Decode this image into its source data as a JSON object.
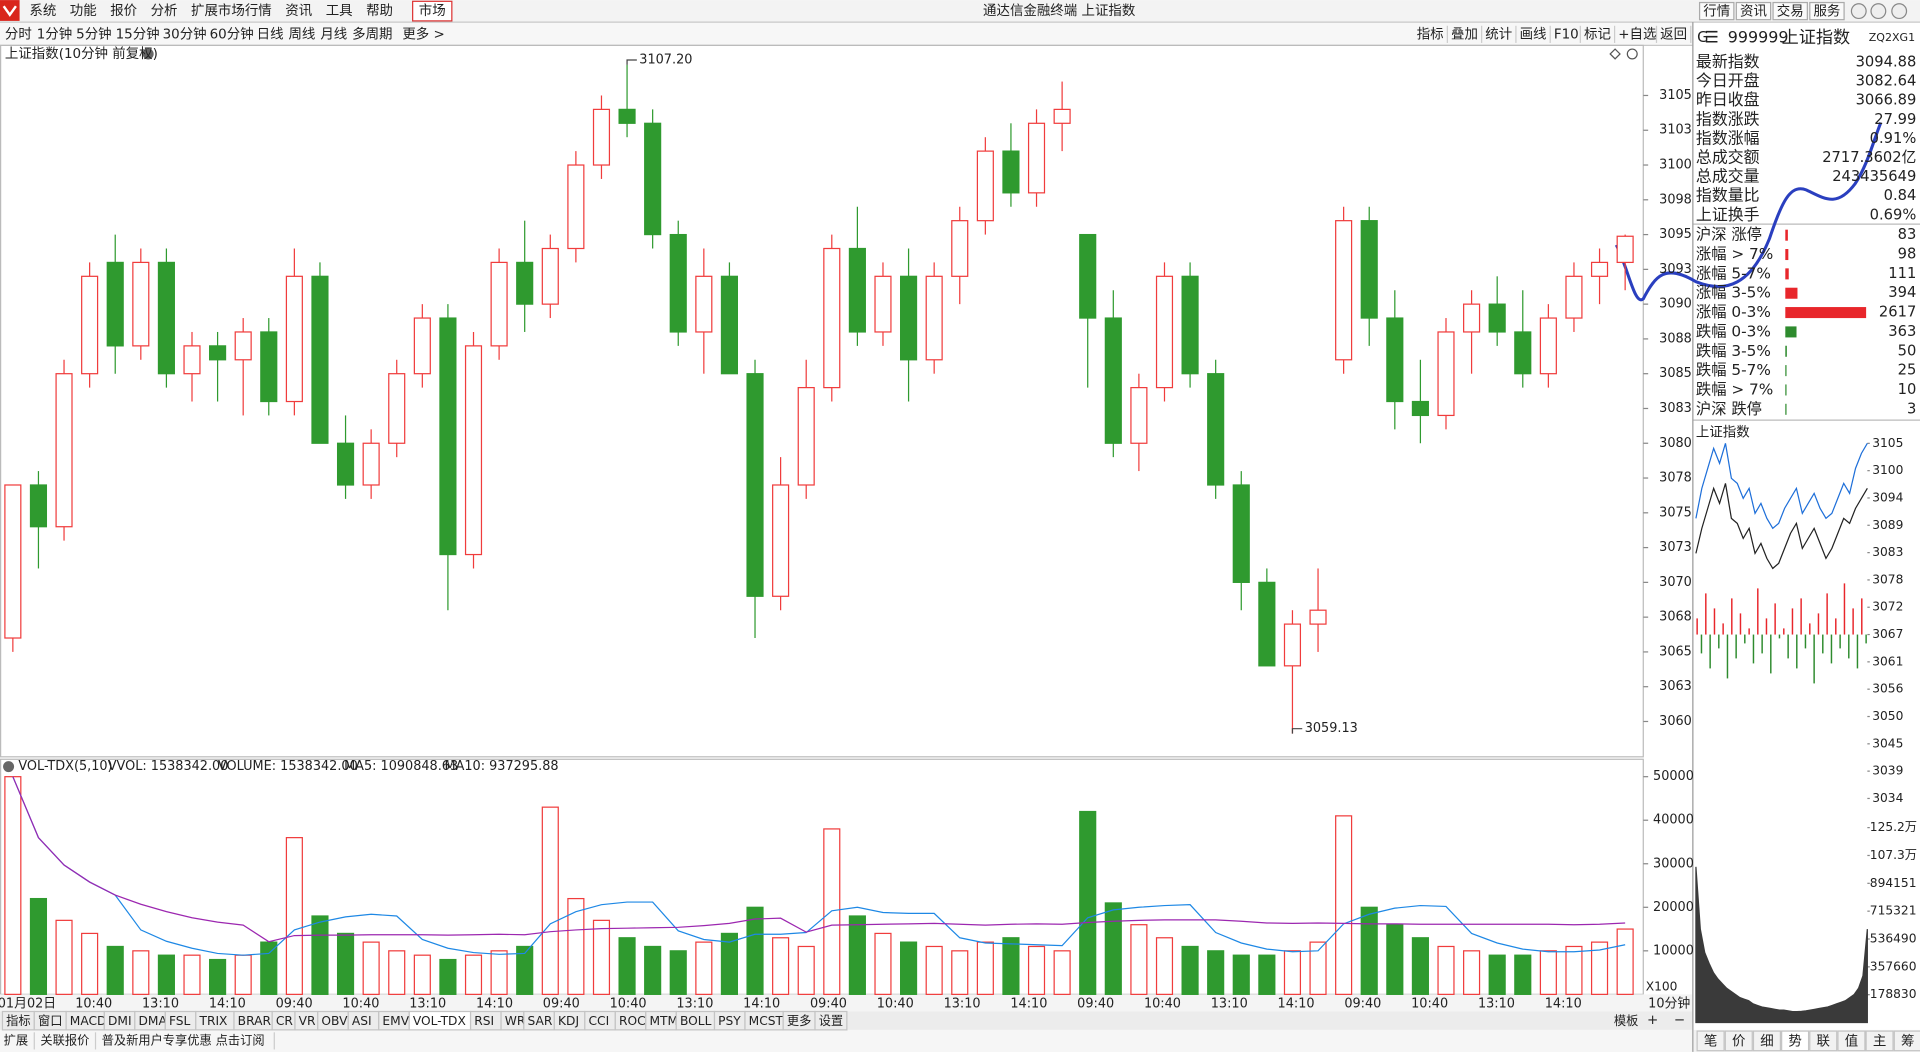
{
  "window": {
    "menu": [
      "系统",
      "功能",
      "报价",
      "分析",
      "扩展市场行情",
      "资讯",
      "工具",
      "帮助"
    ],
    "market": "市场",
    "title": "通达信金融终端 上证指数",
    "buttons": [
      "行情",
      "资讯",
      "交易",
      "服务"
    ]
  },
  "toolbar": {
    "periods": [
      "分时",
      "1分钟",
      "5分钟",
      "15分钟",
      "30分钟",
      "60分钟",
      "日线",
      "周线",
      "月线",
      "多周期"
    ],
    "more": "更多 >",
    "tools": [
      "指标",
      "叠加",
      "统计",
      "画线",
      "F10",
      "标记",
      "+自选",
      "返回"
    ]
  },
  "chart_data": [
    {
      "type": "candlestick",
      "title": "上证指数(10分钟 前复权)",
      "up_color": "#f03c3c",
      "down_color": "#2f9a2f",
      "ohlc": [
        [
          3066,
          3077,
          3065,
          3077
        ],
        [
          3077,
          3078,
          3071,
          3074
        ],
        [
          3074,
          3086,
          3073,
          3085
        ],
        [
          3085,
          3093,
          3084,
          3092
        ],
        [
          3093,
          3095,
          3085,
          3087
        ],
        [
          3087,
          3094,
          3086,
          3093
        ],
        [
          3093,
          3094,
          3084,
          3085
        ],
        [
          3085,
          3088,
          3083,
          3087
        ],
        [
          3087,
          3088,
          3083,
          3086
        ],
        [
          3086,
          3089,
          3082,
          3088
        ],
        [
          3088,
          3089,
          3082,
          3083
        ],
        [
          3083,
          3094,
          3082,
          3092
        ],
        [
          3092,
          3093,
          3080,
          3080
        ],
        [
          3080,
          3082,
          3076,
          3077
        ],
        [
          3077,
          3081,
          3076,
          3080
        ],
        [
          3080,
          3086,
          3079,
          3085
        ],
        [
          3085,
          3090,
          3084,
          3089
        ],
        [
          3089,
          3090,
          3068,
          3072
        ],
        [
          3072,
          3088,
          3071,
          3087
        ],
        [
          3087,
          3094,
          3086,
          3093
        ],
        [
          3093,
          3096,
          3088,
          3090
        ],
        [
          3090,
          3095,
          3089,
          3094
        ],
        [
          3094,
          3101,
          3093,
          3100
        ],
        [
          3100,
          3105,
          3099,
          3104
        ],
        [
          3104,
          3107.2,
          3102,
          3103
        ],
        [
          3103,
          3104,
          3094,
          3095
        ],
        [
          3095,
          3096,
          3087,
          3088
        ],
        [
          3088,
          3094,
          3085,
          3092
        ],
        [
          3092,
          3093,
          3085,
          3085
        ],
        [
          3085,
          3086,
          3066,
          3069
        ],
        [
          3069,
          3079,
          3068,
          3077
        ],
        [
          3077,
          3086,
          3076,
          3084
        ],
        [
          3084,
          3095,
          3083,
          3094
        ],
        [
          3094,
          3097,
          3087,
          3088
        ],
        [
          3088,
          3093,
          3087,
          3092
        ],
        [
          3092,
          3094,
          3083,
          3086
        ],
        [
          3086,
          3093,
          3085,
          3092
        ],
        [
          3092,
          3097,
          3090,
          3096
        ],
        [
          3096,
          3102,
          3095,
          3101
        ],
        [
          3101,
          3103,
          3097,
          3098
        ],
        [
          3098,
          3104,
          3097,
          3103
        ],
        [
          3103,
          3106,
          3101,
          3104
        ],
        [
          3095,
          3095,
          3084,
          3089
        ],
        [
          3089,
          3091,
          3079,
          3080
        ],
        [
          3080,
          3085,
          3078,
          3084
        ],
        [
          3084,
          3093,
          3083,
          3092
        ],
        [
          3092,
          3093,
          3084,
          3085
        ],
        [
          3085,
          3086,
          3076,
          3077
        ],
        [
          3077,
          3078,
          3068,
          3070
        ],
        [
          3070,
          3071,
          3064,
          3064
        ],
        [
          3064,
          3068,
          3059.13,
          3067
        ],
        [
          3067,
          3071,
          3065,
          3068
        ],
        [
          3086,
          3097,
          3085,
          3096
        ],
        [
          3096,
          3097,
          3087,
          3089
        ],
        [
          3089,
          3091,
          3081,
          3083
        ],
        [
          3083,
          3086,
          3080,
          3082
        ],
        [
          3082,
          3089,
          3081,
          3088
        ],
        [
          3088,
          3091,
          3085,
          3090
        ],
        [
          3090,
          3092,
          3087,
          3088
        ],
        [
          3088,
          3091,
          3084,
          3085
        ],
        [
          3085,
          3090,
          3084,
          3089
        ],
        [
          3089,
          3093,
          3088,
          3092
        ],
        [
          3092,
          3094,
          3090,
          3093
        ],
        [
          3093,
          3095,
          3091,
          3094.88
        ]
      ],
      "ylim": [
        3057.46,
        3108.6
      ],
      "yticks": [
        3105,
        {
          "value": 3102.5,
          "label": "3103"
        },
        3100,
        {
          "value": 3097.5,
          "label": "3098"
        },
        3095,
        {
          "value": 3092.5,
          "label": "3093"
        },
        3090,
        {
          "value": 3087.5,
          "label": "3088"
        },
        3085,
        {
          "value": 3082.5,
          "label": "3083"
        },
        3080,
        {
          "value": 3077.5,
          "label": "3078"
        },
        3075,
        {
          "value": 3072.5,
          "label": "3073"
        },
        3070,
        {
          "value": 3067.5,
          "label": "3068"
        },
        3065,
        {
          "value": 3062.5,
          "label": "3063"
        },
        3060
      ],
      "annotations": [
        {
          "value": 3107.2,
          "label": "3107.20",
          "kind": "high"
        },
        {
          "value": 3059.13,
          "label": "3059.13",
          "kind": "low"
        }
      ],
      "x_labels": [
        "01月02日",
        "10:40",
        "13:10",
        "14:10",
        "09:40",
        "10:40",
        "13:10",
        "14:10",
        "09:40",
        "10:40",
        "13:10",
        "14:10",
        "09:40",
        "10:40",
        "13:10",
        "14:10",
        "09:40",
        "10:40",
        "13:10",
        "14:10",
        "09:40",
        "10:40",
        "13:10",
        "14:10"
      ],
      "period_label": "10分钟"
    },
    {
      "type": "bar",
      "title": "VOL-TDX(5,10)",
      "vvol": "VVOL: 1538342.00",
      "volume_label": "VOLUME: 1538342.00",
      "volume_color": "#1e88e5",
      "scale_label": "X100",
      "values": [
        50000,
        22000,
        17000,
        14000,
        11000,
        10000,
        9000,
        9000,
        8000,
        9000,
        12000,
        36000,
        18000,
        14000,
        12000,
        10000,
        9000,
        8000,
        9000,
        10000,
        11000,
        43000,
        22000,
        17000,
        13000,
        11000,
        10000,
        12000,
        14000,
        20000,
        13000,
        11000,
        38000,
        18000,
        14000,
        12000,
        11000,
        10000,
        12000,
        13000,
        11000,
        10000,
        42000,
        21000,
        16000,
        13000,
        11000,
        10000,
        9000,
        9000,
        10000,
        12000,
        41000,
        20000,
        16000,
        13000,
        11000,
        10000,
        9000,
        9000,
        10000,
        11000,
        12000,
        15000
      ],
      "series": [
        {
          "name": "MA5: 1090848.63",
          "color": "#1e88e5",
          "values": [
            50000,
            36000,
            29700,
            25800,
            22800,
            14800,
            12200,
            10600,
            9400,
            9000,
            9400,
            14800,
            16600,
            17800,
            18400,
            18000,
            12600,
            10600,
            9600,
            9200,
            9400,
            16200,
            19000,
            20600,
            21200,
            21200,
            14600,
            12600,
            12000,
            13800,
            13800,
            14200,
            19200,
            20000,
            18800,
            18600,
            18600,
            13000,
            11800,
            11600,
            11400,
            11200,
            17600,
            19400,
            20000,
            20400,
            20600,
            14200,
            11800,
            10400,
            9800,
            10000,
            16200,
            18400,
            19800,
            20400,
            20200,
            14000,
            11800,
            10400,
            9800,
            9800,
            10200,
            11400
          ]
        },
        {
          "name": "MA10: 937295.88",
          "color": "#9c27b0",
          "values": [
            50000,
            36000,
            29700,
            25800,
            22800,
            20700,
            19000,
            17600,
            16600,
            15900,
            12100,
            13500,
            13600,
            13600,
            13700,
            13700,
            13700,
            13600,
            13700,
            13800,
            13700,
            14400,
            14800,
            15100,
            15200,
            15300,
            15400,
            15800,
            16300,
            17300,
            17500,
            14300,
            15900,
            16000,
            16100,
            16200,
            16300,
            16100,
            15900,
            16100,
            16200,
            16100,
            16500,
            16800,
            17000,
            17100,
            17100,
            17100,
            16800,
            16400,
            16300,
            16400,
            16300,
            16200,
            16200,
            16100,
            16100,
            16100,
            16100,
            16100,
            16100,
            16000,
            16100,
            16400
          ]
        }
      ],
      "ylim": [
        0,
        54000
      ],
      "yticks": [
        10000,
        20000,
        30000,
        40000,
        50000
      ]
    },
    {
      "type": "line",
      "title": "上证指数",
      "up_color": "#e8262b",
      "down_color": "#2e8b2e",
      "flat_color": "#222",
      "series": [
        {
          "color": "#1e6fd9",
          "values": [
            3090,
            3096,
            3100,
            3104,
            3101,
            3105,
            3098,
            3097,
            3094,
            3096,
            3091,
            3093,
            3090,
            3088,
            3089,
            3092,
            3094,
            3096,
            3091,
            3093,
            3095,
            3092,
            3090,
            3091,
            3094,
            3097,
            3095,
            3100,
            3103,
            3105
          ]
        },
        {
          "color": "#222222",
          "values": [
            3083,
            3088,
            3092,
            3096,
            3093,
            3097,
            3090,
            3089,
            3086,
            3088,
            3083,
            3085,
            3082,
            3080,
            3081,
            3084,
            3087,
            3089,
            3084,
            3086,
            3088,
            3085,
            3082,
            3084,
            3087,
            3090,
            3089,
            3092,
            3094,
            3096
          ]
        }
      ],
      "flow": [
        3070,
        3063,
        3075,
        3060,
        3072,
        3064,
        3069,
        3058,
        3074,
        3062,
        3071,
        3065,
        3068,
        3061,
        3076,
        3063,
        3070,
        3059,
        3073,
        3066,
        3068,
        3062,
        3072,
        3060,
        3074,
        3064,
        3069,
        3057,
        3071,
        3063,
        3075,
        3061,
        3070,
        3064,
        3077,
        3062,
        3072,
        3060,
        3074,
        3065
      ],
      "ylim": [
        3033.02,
        3105.98
      ],
      "yticks": [
        3105,
        {
          "value": 3099.54,
          "label": "3100"
        },
        {
          "value": 3094.08,
          "label": "3094"
        },
        {
          "value": 3088.62,
          "label": "3089"
        },
        {
          "value": 3083.15,
          "label": "3083"
        },
        {
          "value": 3077.69,
          "label": "3078"
        },
        {
          "value": 3072.23,
          "label": "3072"
        },
        {
          "value": 3066.77,
          "label": "3067"
        },
        {
          "value": 3061.31,
          "label": "3061"
        },
        {
          "value": 3055.85,
          "label": "3056"
        },
        {
          "value": 3050.38,
          "label": "3050"
        },
        {
          "value": 3044.92,
          "label": "3045"
        },
        {
          "value": 3039.46,
          "label": "3039"
        },
        3034
      ]
    },
    {
      "type": "area",
      "color": "#3a3a3a",
      "values": [
        1000000,
        600000,
        450000,
        380000,
        320000,
        280000,
        250000,
        220000,
        200000,
        180000,
        160000,
        150000,
        140000,
        120000,
        110000,
        100000,
        95000,
        90000,
        85000,
        80000,
        80000,
        75000,
        70000,
        70000,
        72000,
        75000,
        80000,
        85000,
        90000,
        95000,
        100000,
        110000,
        120000,
        130000,
        140000,
        160000,
        180000,
        220000,
        300000,
        600000
      ],
      "ylim": [
        0,
        1282000
      ],
      "yticks": [
        {
          "value": 1252000,
          "label": "125.2万"
        },
        {
          "value": 1073000,
          "label": "107.3万"
        },
        894151,
        715321,
        536490,
        357660,
        178830
      ]
    }
  ],
  "indicator_tabs": [
    "指标",
    "窗口",
    "MACD",
    "DMI",
    "DMA",
    "FSL",
    "TRIX",
    "BRAR",
    "CR",
    "VR",
    "OBV",
    "ASI",
    "EMV",
    "VOL-TDX",
    "RSI",
    "WR",
    "SAR",
    "KDJ",
    "CCI",
    "ROC",
    "MTM",
    "BOLL",
    "PSY",
    "MCST",
    "更多",
    "设置"
  ],
  "indicator_selected": 13,
  "template": "模板",
  "status": [
    "扩展",
    "关联报价",
    "普及新用户专享优惠 点击订阅"
  ],
  "quote": {
    "badge": "G",
    "code": "999999",
    "name": "上证指数",
    "tag": "ZQ2XG1",
    "rows": [
      {
        "label": "最新指数",
        "value": "3094.88",
        "color": "#e8262b"
      },
      {
        "label": "今日开盘",
        "value": "3082.64",
        "color": "#e8262b"
      },
      {
        "label": "昨日收盘",
        "value": "3066.89",
        "color": "#111111"
      },
      {
        "label": "指数涨跌",
        "value": "27.99",
        "color": "#e8262b"
      },
      {
        "label": "指数涨幅",
        "value": "0.91%",
        "color": "#e8262b"
      },
      {
        "label": "总成交额",
        "value": "2717.3602亿",
        "color": "#111111"
      },
      {
        "label": "总成交量",
        "value": "243435649",
        "color": "#111111"
      },
      {
        "label": "指数量比",
        "value": "0.84",
        "color": "#2e8b2e"
      },
      {
        "label": "上证换手",
        "value": "0.69%",
        "color": "#111111"
      }
    ]
  },
  "breadth": {
    "max": 2617,
    "rows": [
      {
        "label": "沪深 涨停",
        "value": 83,
        "color": "#e8262b"
      },
      {
        "label": "涨幅 > 7%",
        "value": 98,
        "color": "#e8262b"
      },
      {
        "label": "涨幅 5-7%",
        "value": 111,
        "color": "#e8262b"
      },
      {
        "label": "涨幅 3-5%",
        "value": 394,
        "color": "#e8262b"
      },
      {
        "label": "涨幅 0-3%",
        "value": 2617,
        "color": "#e8262b"
      },
      {
        "label": "跌幅 0-3%",
        "value": 363,
        "color": "#2e8b2e"
      },
      {
        "label": "跌幅 3-5%",
        "value": 50,
        "color": "#2e8b2e"
      },
      {
        "label": "跌幅 5-7%",
        "value": 25,
        "color": "#2e8b2e"
      },
      {
        "label": "跌幅 > 7%",
        "value": 10,
        "color": "#2e8b2e"
      },
      {
        "label": "沪深 跌停",
        "value": 3,
        "color": "#2e8b2e"
      }
    ]
  },
  "side_tabs": [
    "笔",
    "价",
    "细",
    "势",
    "联",
    "值",
    "主",
    "筹"
  ],
  "side_selected": 3
}
